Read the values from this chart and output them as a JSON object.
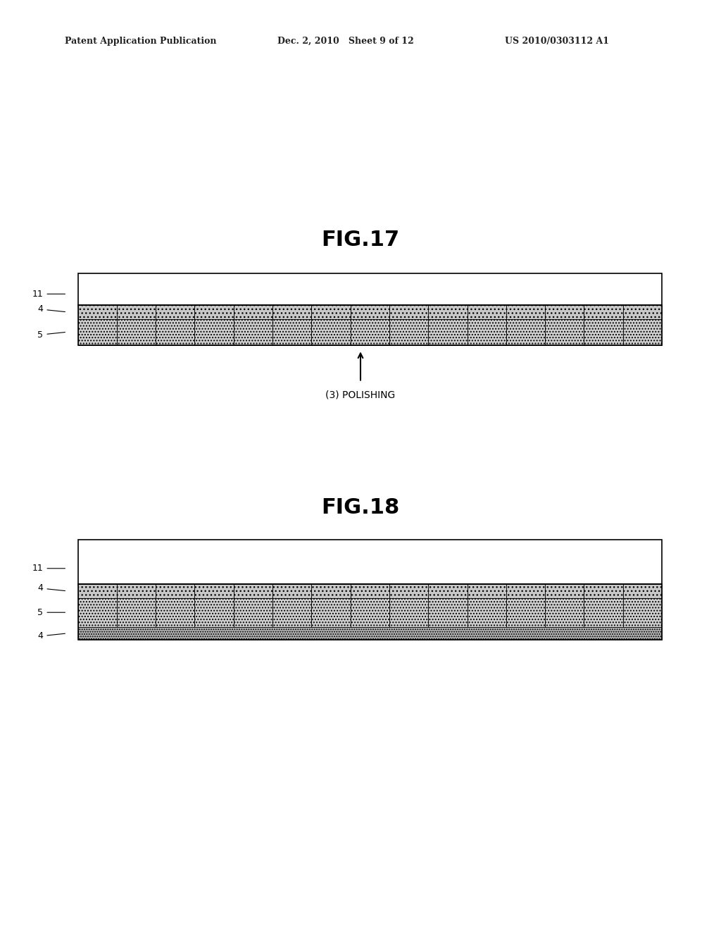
{
  "bg_color": "#ffffff",
  "header_left": "Patent Application Publication",
  "header_mid": "Dec. 2, 2010   Sheet 9 of 12",
  "header_right": "US 2010/0303112 A1",
  "fig17_title": "FIG.17",
  "fig18_title": "FIG.18",
  "polishing_label": "(3) POLISHING",
  "num_cells": 15,
  "cell_light_color": "#d8d8d8",
  "cell_dark_color": "#b8b8b8",
  "cell_border_color": "#000000",
  "layer11_color": "#ffffff",
  "layer4_color": "#c8c8c8",
  "layer5_color": "#d0d0d0",
  "layer4bot_color": "#b8b8b8",
  "header_fontsize": 9,
  "figtitle_fontsize": 22,
  "label_fontsize": 9,
  "polishing_fontsize": 10
}
